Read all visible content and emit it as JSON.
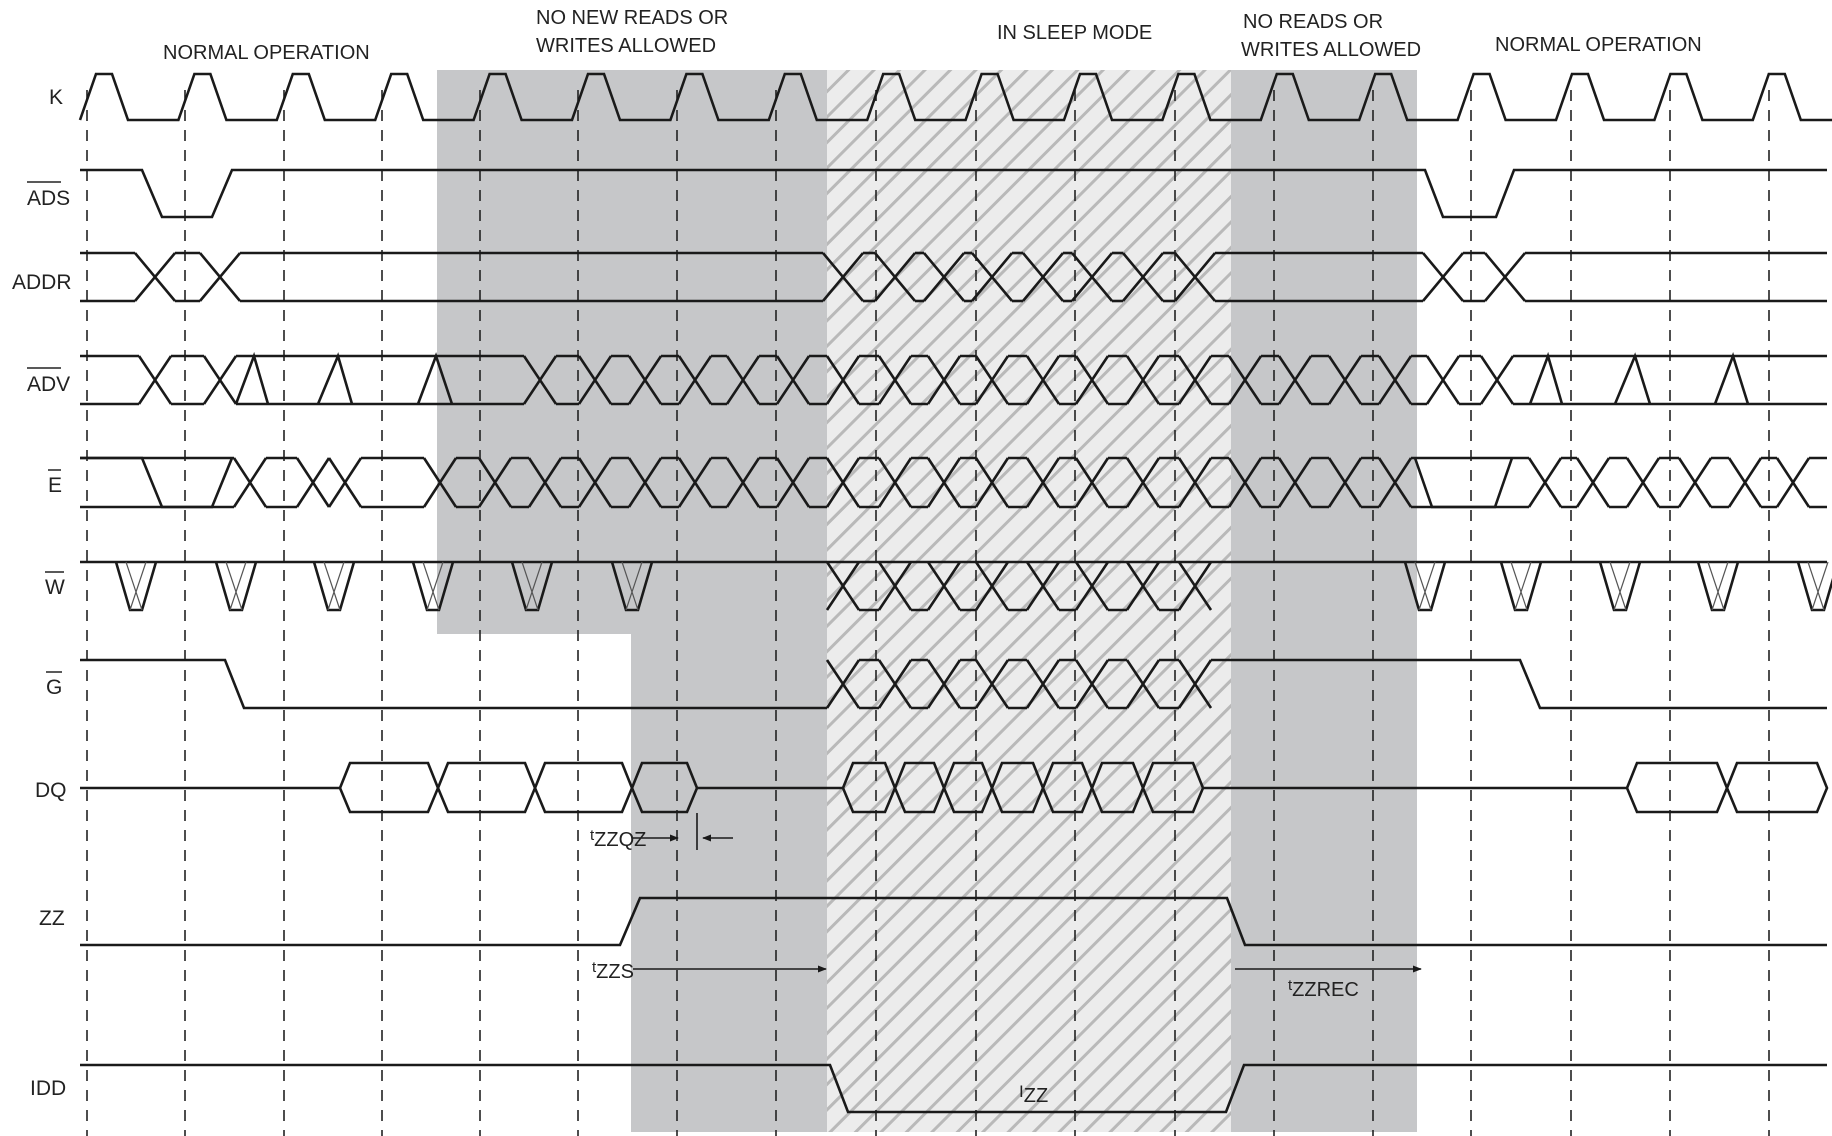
{
  "diagram": {
    "regions": {
      "normal_left": "NORMAL OPERATION",
      "no_new_line1": "NO NEW READS OR",
      "no_new_line2": "WRITES ALLOWED",
      "sleep": "IN SLEEP MODE",
      "no_reads_line1": "NO READS OR",
      "no_reads_line2": "WRITES ALLOWED",
      "normal_right": "NORMAL OPERATION"
    },
    "signals": {
      "k": "K",
      "ads": "ADS",
      "addr": "ADDR",
      "adv": "ADV",
      "e": "E",
      "w": "W",
      "g": "G",
      "dq": "DQ",
      "zz": "ZZ",
      "idd": "IDD"
    },
    "timings": {
      "tzzqz_prefix": "t",
      "tzzqz_sub": "ZZQZ",
      "tzzs_prefix": "t",
      "tzzs_sub": "ZZS",
      "tzzrec_prefix": "t",
      "tzzrec_sub": "ZZREC",
      "izz_prefix": "I",
      "izz_sub": "ZZ"
    },
    "colors": {
      "shade": "#c6c7c9",
      "hatch_bg": "#ececec",
      "hatch_line": "#b9b9b9",
      "line": "#1a1a1a"
    }
  }
}
